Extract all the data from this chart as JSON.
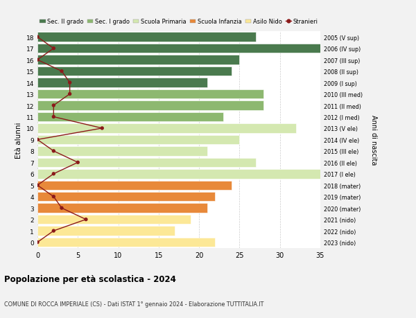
{
  "ages": [
    0,
    1,
    2,
    3,
    4,
    5,
    6,
    7,
    8,
    9,
    10,
    11,
    12,
    13,
    14,
    15,
    16,
    17,
    18
  ],
  "bar_values": [
    22,
    17,
    19,
    21,
    22,
    24,
    35,
    27,
    21,
    25,
    32,
    23,
    28,
    28,
    21,
    24,
    25,
    36,
    27
  ],
  "bar_colors": [
    "#fce897",
    "#fce897",
    "#fce897",
    "#e8893a",
    "#e8893a",
    "#e8893a",
    "#d4e8b0",
    "#d4e8b0",
    "#d4e8b0",
    "#d4e8b0",
    "#d4e8b0",
    "#8db870",
    "#8db870",
    "#8db870",
    "#4a7a4e",
    "#4a7a4e",
    "#4a7a4e",
    "#4a7a4e",
    "#4a7a4e"
  ],
  "stranieri_values": [
    0,
    2,
    6,
    3,
    2,
    0,
    2,
    5,
    2,
    0,
    8,
    2,
    2,
    4,
    4,
    3,
    0,
    2,
    0
  ],
  "right_labels": [
    "2023 (nido)",
    "2022 (nido)",
    "2021 (nido)",
    "2020 (mater)",
    "2019 (mater)",
    "2018 (mater)",
    "2017 (I ele)",
    "2016 (II ele)",
    "2015 (III ele)",
    "2014 (IV ele)",
    "2013 (V ele)",
    "2012 (I med)",
    "2011 (II med)",
    "2010 (III med)",
    "2009 (I sup)",
    "2008 (II sup)",
    "2007 (III sup)",
    "2006 (IV sup)",
    "2005 (V sup)"
  ],
  "legend_labels": [
    "Sec. II grado",
    "Sec. I grado",
    "Scuola Primaria",
    "Scuola Infanzia",
    "Asilo Nido",
    "Stranieri"
  ],
  "legend_colors": [
    "#4a7a4e",
    "#8db870",
    "#d4e8b0",
    "#e8893a",
    "#fce897",
    "#8b1a1a"
  ],
  "title": "Popolazione per età scolastica - 2024",
  "subtitle": "COMUNE DI ROCCA IMPERIALE (CS) - Dati ISTAT 1° gennaio 2024 - Elaborazione TUTTITALIA.IT",
  "ylabel": "Età alunni",
  "right_ylabel": "Anni di nascita",
  "xlim": [
    0,
    35
  ],
  "bg_color": "#f2f2f2",
  "bar_bg_color": "#ffffff",
  "stranieri_color": "#8b1a1a"
}
